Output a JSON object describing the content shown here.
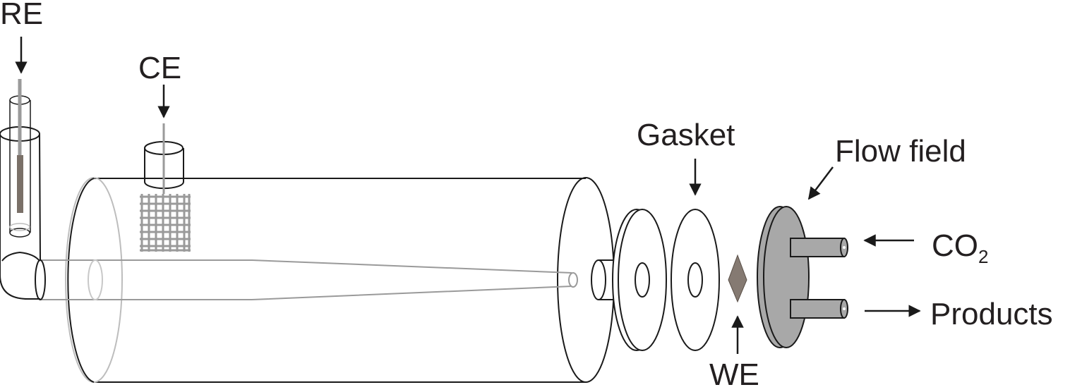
{
  "labels": {
    "re": "RE",
    "ce": "CE",
    "gasket": "Gasket",
    "flow_field": "Flow field",
    "we": "WE",
    "co2_main": "CO",
    "co2_sub": "2",
    "products": "Products"
  },
  "colors": {
    "outline": "#1a1a1a",
    "faint_outline": "#9a9a9a",
    "glass_light": "#c8c8c8",
    "electrode_gray": "#808080",
    "re_rod": "#7a7068",
    "we_diamond": "#857a72",
    "flow_field_fill": "#a8a8a8"
  }
}
